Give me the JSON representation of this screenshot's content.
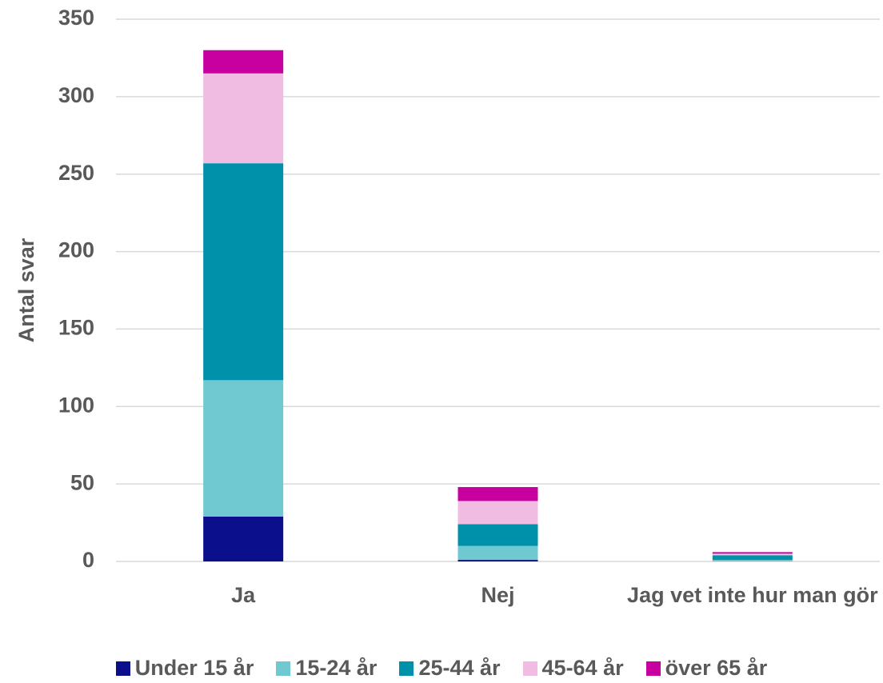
{
  "chart_data": {
    "type": "stacked_bar",
    "ylabel": "Antal svar",
    "categories": [
      "Ja",
      "Nej",
      "Jag vet inte hur man gör"
    ],
    "series": [
      {
        "name": "Under 15 år",
        "color": "#0b0f8c",
        "values": [
          29,
          1,
          0
        ]
      },
      {
        "name": "15-24 år",
        "color": "#70c8d0",
        "values": [
          88,
          9,
          1
        ]
      },
      {
        "name": "25-44 år",
        "color": "#0091aa",
        "values": [
          140,
          14,
          3
        ]
      },
      {
        "name": "45-64 år",
        "color": "#f0bce2",
        "values": [
          58,
          15,
          1
        ]
      },
      {
        "name": "över 65 år",
        "color": "#c800a0",
        "values": [
          15,
          9,
          1
        ]
      }
    ],
    "ylim": [
      0,
      350
    ],
    "yticks": [
      0,
      50,
      100,
      150,
      200,
      250,
      300,
      350
    ],
    "grid": true,
    "legend": "bottom"
  }
}
